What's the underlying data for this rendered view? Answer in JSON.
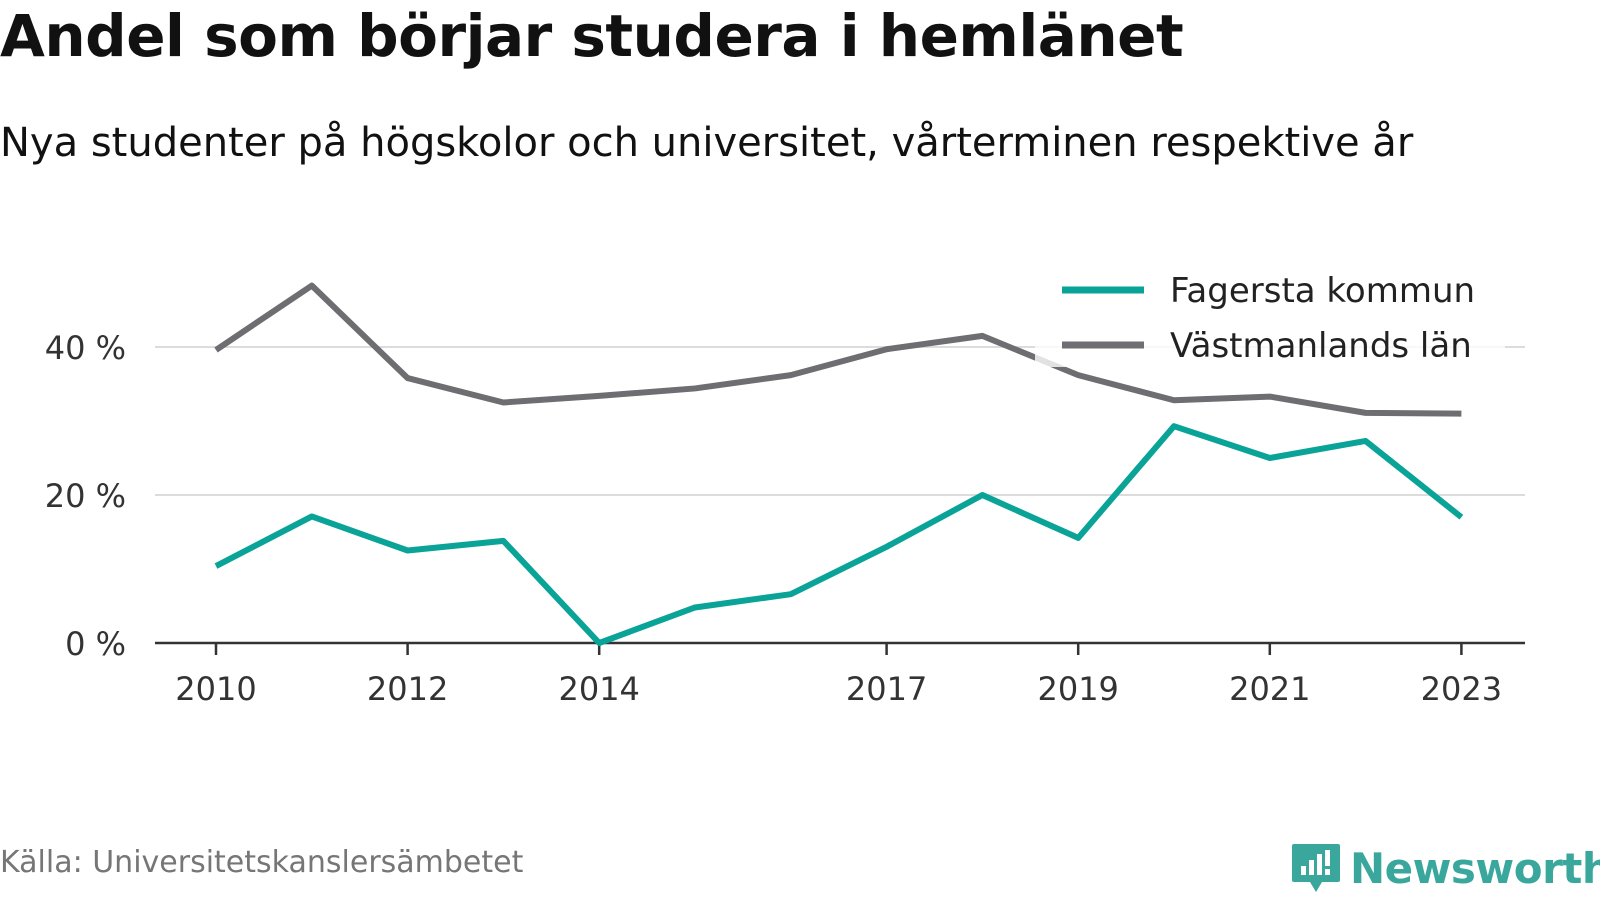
{
  "header": {
    "title": "Andel som börjar studera i hemlänet",
    "subtitle": "Nya studenter på högskolor och universitet, vårterminen respektive år"
  },
  "footer": {
    "source": "Källa: Universitetskanslersämbetet",
    "brand": "Newsworthy",
    "brand_color": "#3aa79c",
    "brand_icon": "bar-chart-speech-bubble-icon"
  },
  "chart_data": {
    "type": "line",
    "title": "Andel som börjar studera i hemlänet",
    "subtitle": "Nya studenter på högskolor och universitet, vårterminen respektive år",
    "x": [
      2010,
      2011,
      2012,
      2013,
      2014,
      2015,
      2016,
      2017,
      2018,
      2019,
      2020,
      2021,
      2022,
      2023
    ],
    "x_ticks": [
      "2010",
      "2012",
      "2014",
      "2017",
      "2019",
      "2021",
      "2023"
    ],
    "y_ticks": [
      "0 %",
      "20 %",
      "40 %"
    ],
    "ylim": [
      0,
      48
    ],
    "grid": true,
    "legend_position": "top-right",
    "series": [
      {
        "name": "Fagersta kommun",
        "color": "#0aa398",
        "values": [
          10.4,
          17.1,
          12.5,
          13.8,
          0,
          4.8,
          6.6,
          13.0,
          20.0,
          14.2,
          29.3,
          25.0,
          27.3,
          17.0
        ]
      },
      {
        "name": "Västmanlands län",
        "color": "#6e6e72",
        "values": [
          39.6,
          48.3,
          35.8,
          32.5,
          33.4,
          34.4,
          36.2,
          39.7,
          41.5,
          36.2,
          32.8,
          33.3,
          31.1,
          31.0
        ]
      }
    ]
  }
}
